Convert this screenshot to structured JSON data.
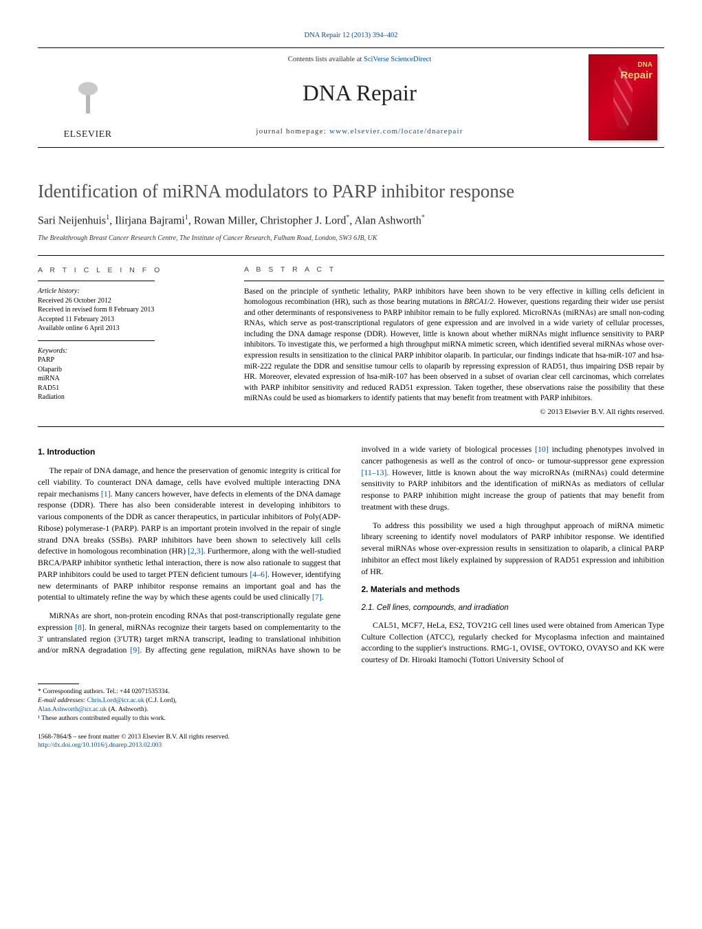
{
  "running_head": "DNA Repair 12 (2013) 394–402",
  "masthead": {
    "contents_prefix": "Contents lists available at ",
    "contents_link": "SciVerse ScienceDirect",
    "journal": "DNA Repair",
    "home_prefix": "journal homepage: ",
    "home_link": "www.elsevier.com/locate/dnarepair",
    "publisher": "ELSEVIER",
    "cover_top": "DNA",
    "cover_bottom": "Repair"
  },
  "title": "Identification of miRNA modulators to PARP inhibitor response",
  "authors_html": "Sari Neijenhuis¹, Ilirjana Bajrami¹, Rowan Miller, Christopher J. Lord*, Alan Ashworth*",
  "authors": [
    {
      "name": "Sari Neijenhuis",
      "sup": "1"
    },
    {
      "name": "Ilirjana Bajrami",
      "sup": "1"
    },
    {
      "name": "Rowan Miller",
      "sup": ""
    },
    {
      "name": "Christopher J. Lord",
      "sup": "*"
    },
    {
      "name": "Alan Ashworth",
      "sup": "*"
    }
  ],
  "affiliation": "The Breakthrough Breast Cancer Research Centre, The Institute of Cancer Research, Fulham Road, London, SW3 6JB, UK",
  "article_info": {
    "heading": "A R T I C L E   I N F O",
    "history_label": "Article history:",
    "received": "Received 26 October 2012",
    "revised": "Received in revised form 8 February 2013",
    "accepted": "Accepted 11 February 2013",
    "online": "Available online 6 April 2013",
    "keywords_label": "Keywords:",
    "keywords": [
      "PARP",
      "Olaparib",
      "miRNA",
      "RAD51",
      "Radiation"
    ]
  },
  "abstract": {
    "heading": "A B S T R A C T",
    "text": "Based on the principle of synthetic lethality, PARP inhibitors have been shown to be very effective in killing cells deficient in homologous recombination (HR), such as those bearing mutations in BRCA1/2. However, questions regarding their wider use persist and other determinants of responsiveness to PARP inhibitor remain to be fully explored. MicroRNAs (miRNAs) are small non-coding RNAs, which serve as post-transcriptional regulators of gene expression and are involved in a wide variety of cellular processes, including the DNA damage response (DDR). However, little is known about whether miRNAs might influence sensitivity to PARP inhibitors. To investigate this, we performed a high throughput miRNA mimetic screen, which identified several miRNAs whose over-expression results in sensitization to the clinical PARP inhibitor olaparib. In particular, our findings indicate that hsa-miR-107 and hsa-miR-222 regulate the DDR and sensitise tumour cells to olaparib by repressing expression of RAD51, thus impairing DSB repair by HR. Moreover, elevated expression of hsa-miR-107 has been observed in a subset of ovarian clear cell carcinomas, which correlates with PARP inhibitor sensitivity and reduced RAD51 expression. Taken together, these observations raise the possibility that these miRNAs could be used as biomarkers to identify patients that may benefit from treatment with PARP inhibitors.",
    "copyright": "© 2013 Elsevier B.V. All rights reserved."
  },
  "sections": {
    "s1_title": "1.  Introduction",
    "s1_p1": "The repair of DNA damage, and hence the preservation of genomic integrity is critical for cell viability. To counteract DNA damage, cells have evolved multiple interacting DNA repair mechanisms [1]. Many cancers however, have defects in elements of the DNA damage response (DDR). There has also been considerable interest in developing inhibitors to various components of the DDR as cancer therapeutics, in particular inhibitors of Poly(ADP-Ribose) polymerase-1 (PARP). PARP is an important protein involved in the repair of single strand DNA breaks (SSBs). PARP inhibitors have been shown to selectively kill cells defective in homologous recombination (HR) [2,3]. Furthermore, along with the well-studied BRCA/PARP inhibitor synthetic lethal interaction, there is now also rationale to suggest that PARP inhibitors could be used to target PTEN deficient tumours [4–6]. However, identifying new determinants of PARP inhibitor response remains an important goal and has the potential to ultimately refine the way by which these agents could be used clinically [7].",
    "s1_p2": "MiRNAs are short, non-protein encoding RNAs that post-transcriptionally regulate gene expression [8]. In general, miRNAs recognize their targets based on complementarity to the 3′ untranslated region (3′UTR) target mRNA transcript, leading to translational inhibition and/or mRNA degradation [9]. By affecting gene regulation, miRNAs have shown to be involved in a wide variety of biological processes [10] including phenotypes involved in cancer pathogenesis as well as the control of onco- or tumour-suppressor gene expression [11–13]. However, little is known about the way microRNAs (miRNAs) could determine sensitivity to PARP inhibitors and the identification of miRNAs as mediators of cellular response to PARP inhibition might increase the group of patients that may benefit from treatment with these drugs.",
    "s1_p3": "To address this possibility we used a high throughput approach of miRNA mimetic library screening to identify novel modulators of PARP inhibitor response. We identified several miRNAs whose over-expression results in sensitization to olaparib, a clinical PARP inhibitor an effect most likely explained by suppression of RAD51 expression and inhibition of HR.",
    "s2_title": "2.  Materials and methods",
    "s2_1_title": "2.1.  Cell lines, compounds, and irradiation",
    "s2_1_p1": "CAL51, MCF7, HeLa, ES2, TOV21G cell lines used were obtained from American Type Culture Collection (ATCC), regularly checked for Mycoplasma infection and maintained according to the supplier's instructions. RMG-1, OVISE, OVTOKO, OVAYSO and KK were courtesy of Dr. Hiroaki Itamochi (Tottori University School of"
  },
  "footnotes": {
    "corr": "* Corresponding authors. Tel.: +44 02071535334.",
    "email_label": "E-mail addresses: ",
    "email1": "Chris.Lord@icr.ac.uk",
    "email1_who": " (C.J. Lord),",
    "email2": "Alan.Ashworth@icr.ac.uk",
    "email2_who": " (A. Ashworth).",
    "equal": "¹ These authors contributed equally to this work."
  },
  "footer": {
    "issn": "1568-7864/$ – see front matter © 2013 Elsevier B.V. All rights reserved.",
    "doi": "http://dx.doi.org/10.1016/j.dnarep.2013.02.003"
  },
  "colors": {
    "link": "#0050a0",
    "title_gray": "#505050",
    "cover_red": "#b00016",
    "text": "#000000"
  }
}
